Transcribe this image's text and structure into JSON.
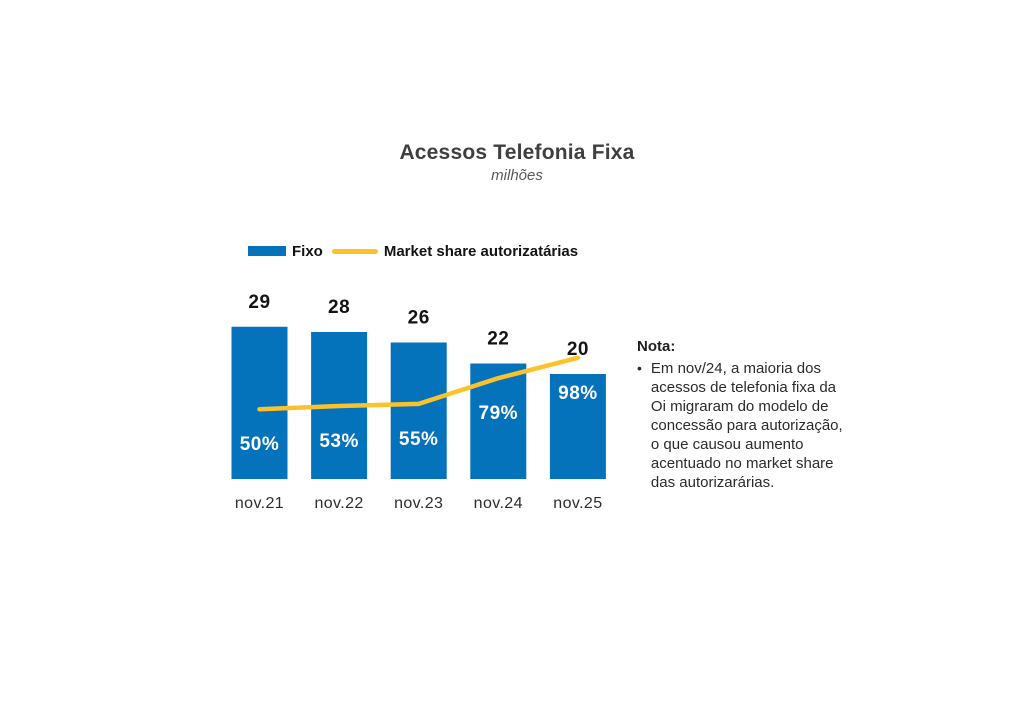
{
  "header": {
    "title": "Acessos Telefonia Fixa",
    "subtitle": "milhões"
  },
  "legend": {
    "position": "top",
    "items": [
      {
        "label": "Fixo",
        "type": "bar",
        "color": "#0572BC"
      },
      {
        "label": "Market share autorizatárias",
        "type": "line",
        "color": "#FCC22B"
      }
    ]
  },
  "chart_data": {
    "type": "bar",
    "subtype": "combo-bar-line",
    "title": "Acessos Telefonia Fixa",
    "subtitle": "milhões",
    "unit": "milhões",
    "categories": [
      "nov.21",
      "nov.22",
      "nov.23",
      "nov.24",
      "nov.25"
    ],
    "series": [
      {
        "name": "Fixo",
        "type": "bar",
        "values": [
          29,
          28,
          26,
          22,
          20
        ],
        "data_labels": [
          "29",
          "28",
          "26",
          "22",
          "20"
        ],
        "color": "#0572BC",
        "label_position": "above-bar"
      },
      {
        "name": "Market share autorizatárias",
        "type": "line",
        "values": [
          50,
          53,
          55,
          79,
          98
        ],
        "labels": [
          "50%",
          "53%",
          "55%",
          "79%",
          "98%"
        ],
        "unit": "%",
        "color": "#FCC22B",
        "label_position": "below-line"
      }
    ],
    "axes": {
      "x_axis_visible": false,
      "y_axis_visible": false,
      "gridlines": false
    },
    "legend_position": "top"
  },
  "note": {
    "heading": "Nota:",
    "items": [
      "Em nov/24, a maioria dos acessos de telefonia fixa da Oi migraram do modelo de concessão para autorização, o que causou aumento acentuado no market share das autorizarárias."
    ]
  },
  "colors": {
    "bar": "#0572BC",
    "line": "#FCC22B",
    "title": "#3F3F3F",
    "subtitle": "#595959",
    "background": "#FFFFFF"
  }
}
